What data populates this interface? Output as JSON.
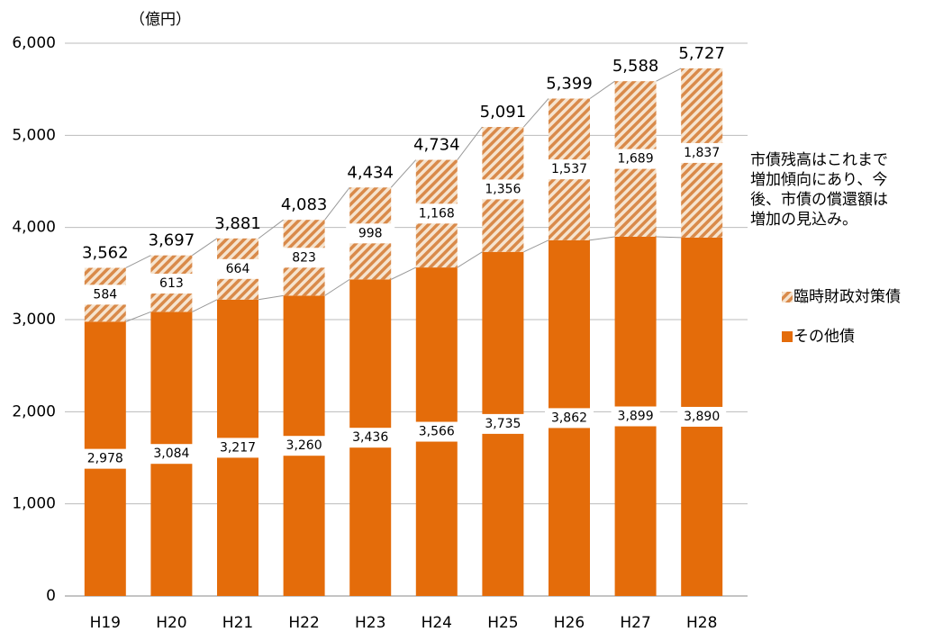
{
  "chart_data": {
    "type": "stacked_bar",
    "unit_label": "（億円）",
    "categories": [
      "H19",
      "H20",
      "H21",
      "H22",
      "H23",
      "H24",
      "H25",
      "H26",
      "H27",
      "H28"
    ],
    "series": [
      {
        "name": "その他債",
        "color": "#e46c0a",
        "pattern": "solid",
        "values": [
          2978,
          3084,
          3217,
          3260,
          3436,
          3566,
          3735,
          3862,
          3899,
          3890
        ],
        "value_labels": [
          "2,978",
          "3,084",
          "3,217",
          "3,260",
          "3,436",
          "3,566",
          "3,735",
          "3,862",
          "3,899",
          "3,890"
        ]
      },
      {
        "name": "臨時財政対策債",
        "color": "#d98a4a",
        "pattern": "hatch",
        "values": [
          584,
          613,
          664,
          823,
          998,
          1168,
          1356,
          1537,
          1689,
          1837
        ],
        "value_labels": [
          "584",
          "613",
          "664",
          "823",
          "998",
          "1,168",
          "1,356",
          "1,537",
          "1,689",
          "1,837"
        ]
      }
    ],
    "totals": {
      "values": [
        3562,
        3697,
        3881,
        4083,
        4434,
        4734,
        5091,
        5399,
        5588,
        5727
      ],
      "value_labels": [
        "3,562",
        "3,697",
        "3,881",
        "4,083",
        "4,434",
        "4,734",
        "5,091",
        "5,399",
        "5,588",
        "5,727"
      ]
    },
    "ylim": [
      0,
      6000
    ],
    "yticks": [
      0,
      {
        "value": 1000,
        "label": "1,000"
      },
      {
        "value": 2000,
        "label": "2,000"
      },
      {
        "value": 3000,
        "label": "3,000"
      },
      {
        "value": 4000,
        "label": "4,000"
      },
      {
        "value": 5000,
        "label": "5,000"
      },
      {
        "value": 6000,
        "label": "6,000"
      }
    ],
    "grid": true,
    "annotation": [
      "市債残高はこれまで",
      "増加傾向にあり、今",
      "後、市債の償還額は",
      "増加の見込み。"
    ]
  }
}
